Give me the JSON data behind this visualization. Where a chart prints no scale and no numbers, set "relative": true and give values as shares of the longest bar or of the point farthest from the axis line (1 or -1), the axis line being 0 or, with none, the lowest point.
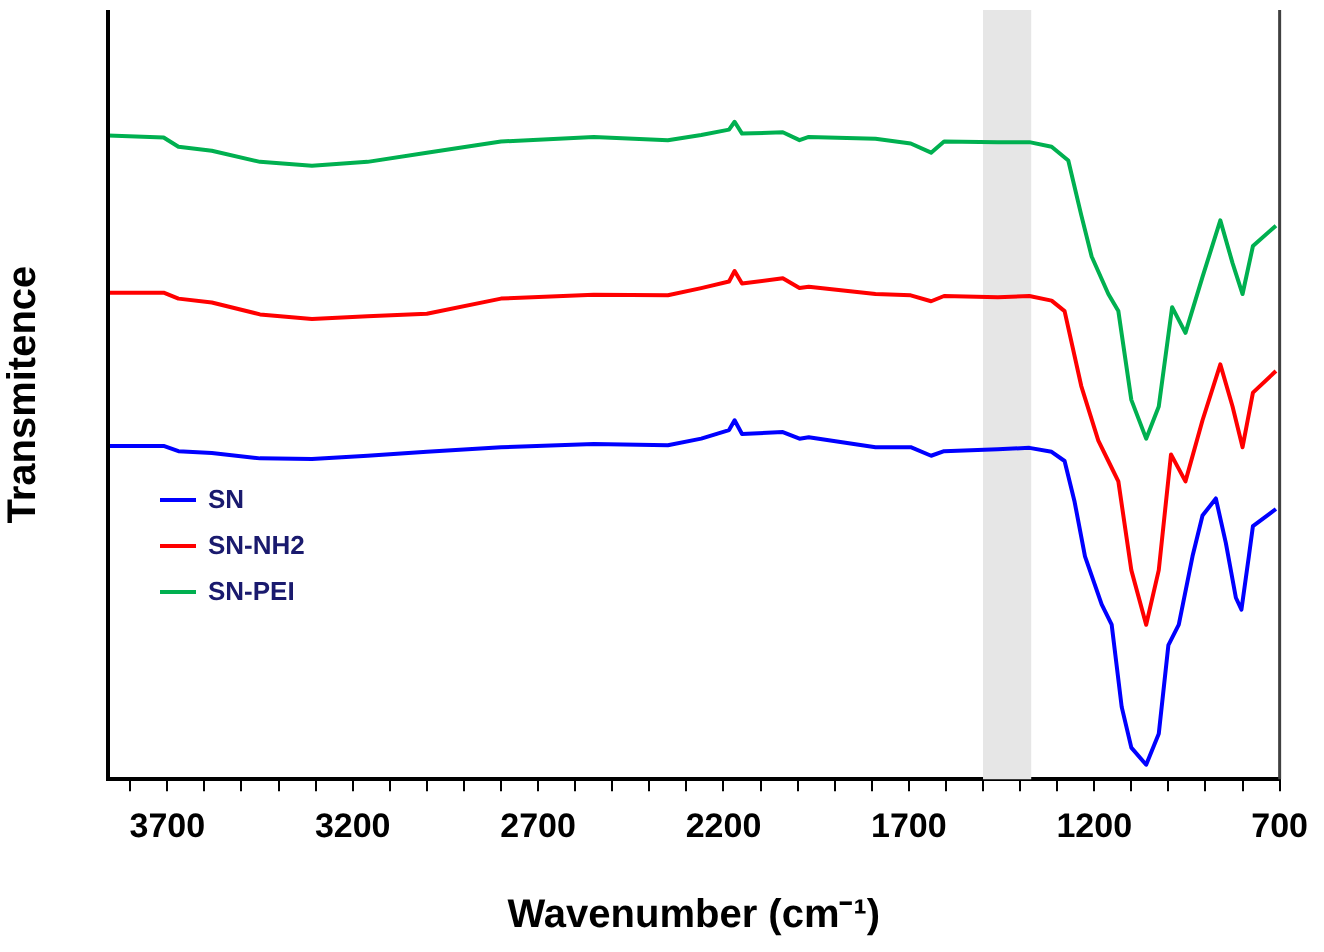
{
  "chart_data": {
    "type": "line",
    "relative": true,
    "xlabel": "Wavenumber (cm⁻¹)",
    "ylabel": "Transmitence",
    "xlim": [
      3860,
      700
    ],
    "xticks": [
      {
        "value": 3800,
        "label": null
      },
      3700,
      {
        "value": 3600,
        "label": null
      },
      {
        "value": 3500,
        "label": null
      },
      {
        "value": 3400,
        "label": null
      },
      {
        "value": 3300,
        "label": null
      },
      3200,
      {
        "value": 3100,
        "label": null
      },
      {
        "value": 3000,
        "label": null
      },
      {
        "value": 2900,
        "label": null
      },
      {
        "value": 2800,
        "label": null
      },
      2700,
      {
        "value": 2600,
        "label": null
      },
      {
        "value": 2500,
        "label": null
      },
      {
        "value": 2400,
        "label": null
      },
      {
        "value": 2300,
        "label": null
      },
      2200,
      {
        "value": 2100,
        "label": null
      },
      {
        "value": 2000,
        "label": null
      },
      {
        "value": 1900,
        "label": null
      },
      {
        "value": 1800,
        "label": null
      },
      1700,
      {
        "value": 1600,
        "label": null
      },
      {
        "value": 1500,
        "label": null
      },
      {
        "value": 1400,
        "label": null
      },
      {
        "value": 1300,
        "label": null
      },
      1200,
      {
        "value": 1100,
        "label": null
      },
      {
        "value": 1000,
        "label": null
      },
      {
        "value": 900,
        "label": null
      },
      {
        "value": 800,
        "label": null
      },
      700
    ],
    "tick_labels": "x",
    "grid": false,
    "legend": "left",
    "bands": [
      {
        "axis": "x",
        "from": 1500,
        "to": 1370,
        "color": "#e6e6e6"
      }
    ],
    "series": [
      {
        "name": "SN",
        "color": "#0000ff",
        "x": [
          3860,
          3710,
          3670,
          3580,
          3450,
          3310,
          3160,
          3000,
          2800,
          2550,
          2350,
          2260,
          2185,
          2170,
          2150,
          2040,
          1995,
          1970,
          1790,
          1695,
          1640,
          1605,
          1460,
          1375,
          1315,
          1280,
          1253,
          1225,
          1180,
          1153,
          1126,
          1100,
          1060,
          1026,
          1000,
          972,
          935,
          908,
          872,
          845,
          818,
          803,
          783,
          772,
          710
        ],
        "values": [
          0.507,
          0.507,
          0.499,
          0.496,
          0.488,
          0.487,
          0.492,
          0.498,
          0.505,
          0.51,
          0.508,
          0.518,
          0.531,
          0.546,
          0.525,
          0.528,
          0.518,
          0.52,
          0.505,
          0.505,
          0.492,
          0.499,
          0.502,
          0.504,
          0.498,
          0.484,
          0.422,
          0.339,
          0.266,
          0.235,
          0.11,
          0.048,
          0.022,
          0.069,
          0.204,
          0.235,
          0.339,
          0.401,
          0.427,
          0.359,
          0.276,
          0.258,
          0.339,
          0.385,
          0.411
        ]
      },
      {
        "name": "SN-NH2",
        "color": "#ff0000",
        "x": [
          3860,
          3710,
          3670,
          3580,
          3450,
          3310,
          3160,
          3000,
          2800,
          2550,
          2350,
          2260,
          2185,
          2170,
          2150,
          2040,
          1995,
          1970,
          1790,
          1695,
          1640,
          1605,
          1460,
          1375,
          1315,
          1280,
          1235,
          1189,
          1162,
          1135,
          1100,
          1060,
          1026,
          993,
          954,
          908,
          860,
          827,
          800,
          772,
          710
        ],
        "values": [
          0.74,
          0.74,
          0.731,
          0.725,
          0.707,
          0.7,
          0.704,
          0.708,
          0.731,
          0.737,
          0.736,
          0.747,
          0.757,
          0.773,
          0.754,
          0.762,
          0.747,
          0.749,
          0.738,
          0.736,
          0.727,
          0.735,
          0.733,
          0.735,
          0.728,
          0.712,
          0.598,
          0.515,
          0.484,
          0.453,
          0.318,
          0.235,
          0.318,
          0.494,
          0.453,
          0.546,
          0.631,
          0.567,
          0.505,
          0.588,
          0.621
        ]
      },
      {
        "name": "SN-PEI",
        "color": "#00b050",
        "x": [
          3860,
          3710,
          3670,
          3580,
          3450,
          3310,
          3160,
          3000,
          2800,
          2550,
          2350,
          2260,
          2185,
          2170,
          2150,
          2040,
          1995,
          1970,
          1790,
          1695,
          1640,
          1605,
          1460,
          1375,
          1315,
          1270,
          1235,
          1207,
          1162,
          1135,
          1100,
          1060,
          1026,
          990,
          954,
          908,
          860,
          827,
          800,
          772,
          710
        ],
        "values": [
          0.979,
          0.976,
          0.962,
          0.956,
          0.939,
          0.933,
          0.939,
          0.953,
          0.97,
          0.977,
          0.972,
          0.98,
          0.988,
          1.0,
          0.982,
          0.984,
          0.972,
          0.977,
          0.974,
          0.967,
          0.953,
          0.97,
          0.969,
          0.969,
          0.962,
          0.941,
          0.858,
          0.795,
          0.738,
          0.712,
          0.577,
          0.518,
          0.567,
          0.718,
          0.679,
          0.764,
          0.85,
          0.785,
          0.738,
          0.811,
          0.842
        ]
      }
    ]
  }
}
